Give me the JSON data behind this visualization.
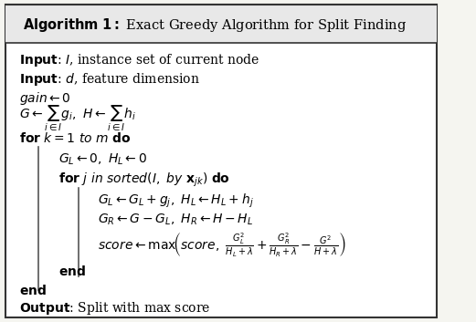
{
  "title": "Algorithm 1: Exact Greedy Algorithm for Split Finding",
  "bg_color": "#f5f5f0",
  "border_color": "#333333",
  "title_bg": "#e8e8e8",
  "fig_width": 5.21,
  "fig_height": 3.53
}
